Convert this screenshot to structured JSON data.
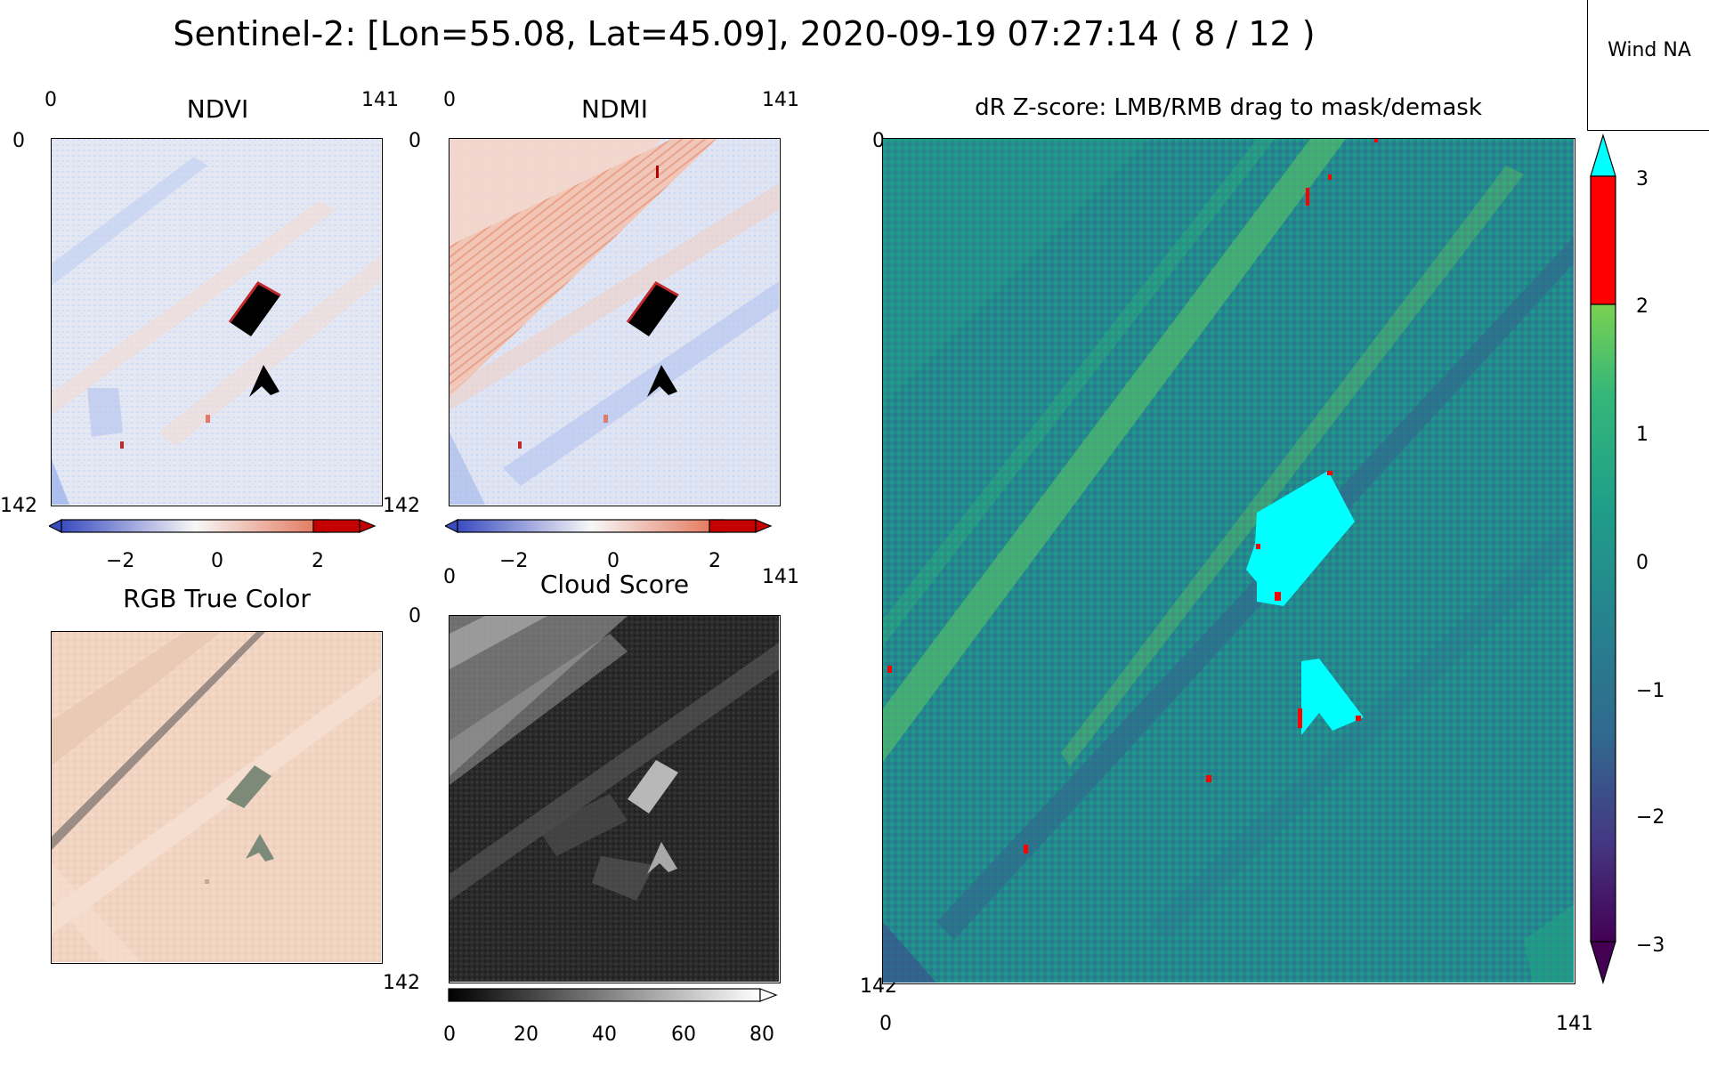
{
  "figure": {
    "title": "Sentinel-2: [Lon=55.08, Lat=45.09], 2020-09-19 07:27:14 ( 8 / 12 )"
  },
  "wind_box": {
    "label": "Wind NA"
  },
  "panels": {
    "ndvi": {
      "title": "NDVI",
      "x_ticks": [
        "0",
        "141"
      ],
      "y_ticks": [
        "0",
        "142"
      ],
      "colorbar_ticks": [
        "−2",
        "0",
        "2"
      ],
      "colorbar_colors": [
        "#3b4cc0",
        "#f7f7f7",
        "#c0282c"
      ]
    },
    "ndmi": {
      "title": "NDMI",
      "x_ticks": [
        "0",
        "141"
      ],
      "y_ticks": [
        "0",
        "142"
      ],
      "colorbar_ticks": [
        "−2",
        "0",
        "2"
      ],
      "colorbar_colors": [
        "#3b4cc0",
        "#f7f7f7",
        "#c0282c"
      ]
    },
    "rgb": {
      "title": "RGB True Color"
    },
    "cloud": {
      "title": "Cloud Score",
      "x_ticks": [
        "0",
        "141"
      ],
      "y_ticks": [
        "0",
        "142"
      ],
      "colorbar_ticks": [
        "0",
        "20",
        "40",
        "60",
        "80"
      ]
    },
    "zscore": {
      "title": "dR Z-score: LMB/RMB drag to mask/demask",
      "x_ticks": [
        "0",
        "141"
      ],
      "y_ticks": [
        "0",
        "142"
      ],
      "colorbar_ticks": [
        "3",
        "2",
        "1",
        "0",
        "−1",
        "−2",
        "−3"
      ],
      "colorbar_range": [
        -3,
        3
      ],
      "over_color": "#00ffff",
      "under_color": "#440154",
      "highlight_color": "#ff0000",
      "mask_color": "#00ffff"
    }
  }
}
